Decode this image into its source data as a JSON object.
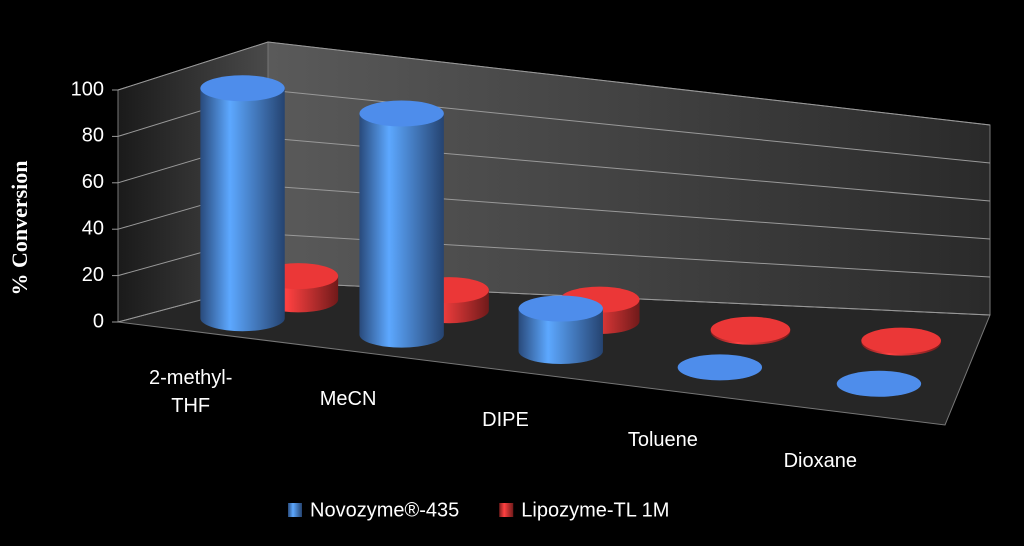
{
  "chart_data": {
    "type": "bar3d",
    "y_label": "% Conversion",
    "categories": [
      "2-methyl-THF",
      "MeCN",
      "DIPE",
      "Toluene",
      "Dioxane"
    ],
    "series": [
      {
        "name": "Novozyme®-435",
        "color": "#4a86e0",
        "values": [
          100,
          100,
          20,
          0,
          0
        ]
      },
      {
        "name": "Lipozyme-TL 1M",
        "color": "#e03434",
        "values": [
          10,
          9,
          10,
          1,
          1
        ]
      }
    ],
    "ylim": [
      0,
      100
    ],
    "yticks": [
      0,
      20,
      40,
      60,
      80,
      100
    ],
    "grid": true
  }
}
